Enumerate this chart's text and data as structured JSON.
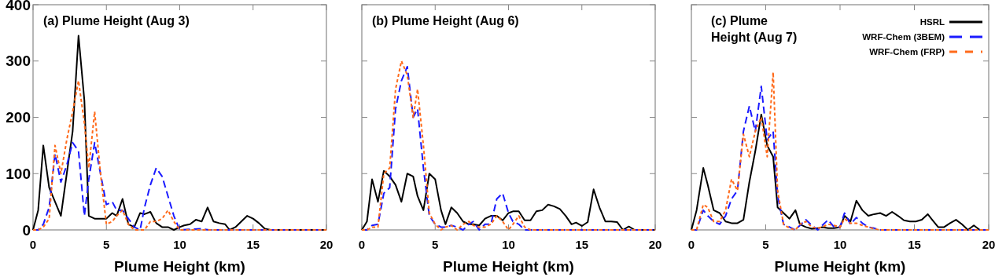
{
  "chart_data": [
    {
      "type": "line",
      "title": "(a) Plume Height (Aug 3)",
      "xlabel": "Plume Height (km)",
      "xlim": [
        0,
        20
      ],
      "xticks": [
        0,
        5,
        10,
        15,
        20
      ],
      "ylim": [
        0,
        400
      ],
      "yticks": [
        0,
        100,
        200,
        300,
        400
      ],
      "grid": false,
      "legend": false,
      "series": [
        {
          "color": "#000000",
          "line_style": "solid",
          "x": [
            0,
            0.35,
            0.7,
            1.1,
            1.5,
            1.9,
            2.3,
            2.7,
            3.1,
            3.5,
            3.8,
            4.2,
            4.6,
            5,
            5.4,
            5.7,
            6.1,
            6.5,
            6.9,
            7.3,
            7.6,
            8,
            8.4,
            8.8,
            9.2,
            9.6,
            10,
            10.3,
            10.7,
            11.1,
            11.5,
            11.9,
            12.3,
            12.7,
            13.1,
            13.4,
            13.8,
            14.2,
            14.6,
            15,
            15.4,
            15.8,
            16.2,
            20
          ],
          "values": [
            0,
            35,
            150,
            75,
            50,
            25,
            100,
            175,
            345,
            230,
            25,
            20,
            20,
            20,
            30,
            25,
            55,
            10,
            5,
            30,
            28,
            32,
            12,
            5,
            5,
            0,
            5,
            8,
            10,
            18,
            15,
            40,
            15,
            12,
            10,
            0,
            5,
            15,
            25,
            20,
            12,
            2,
            0,
            0
          ]
        },
        {
          "color": "#1a1aff",
          "line_style": "dashed",
          "x": [
            0,
            0.35,
            0.7,
            1.1,
            1.5,
            1.9,
            2.3,
            2.7,
            3.1,
            3.5,
            3.8,
            4.2,
            4.6,
            5,
            5.4,
            5.7,
            6.1,
            6.5,
            6.9,
            7.3,
            7.6,
            8,
            8.4,
            8.8,
            9.2,
            9.6,
            10,
            11.5,
            12,
            20
          ],
          "values": [
            0,
            0,
            10,
            40,
            135,
            85,
            115,
            155,
            140,
            25,
            90,
            155,
            100,
            45,
            50,
            35,
            35,
            20,
            5,
            0,
            40,
            80,
            110,
            95,
            60,
            25,
            0,
            2,
            0,
            0
          ]
        },
        {
          "color": "#ff6a1a",
          "line_style": "dotted",
          "x": [
            0,
            0.35,
            0.7,
            1.1,
            1.5,
            1.9,
            2.3,
            2.7,
            3.1,
            3.5,
            3.8,
            4.2,
            4.6,
            5,
            5.4,
            5.7,
            6.1,
            6.5,
            6.9,
            7.6,
            8,
            8.4,
            8.8,
            9.2,
            9.6,
            10,
            20
          ],
          "values": [
            0,
            0,
            5,
            20,
            150,
            100,
            160,
            210,
            265,
            190,
            110,
            210,
            100,
            10,
            15,
            25,
            35,
            10,
            0,
            0,
            15,
            15,
            20,
            35,
            15,
            0,
            0
          ]
        }
      ]
    },
    {
      "type": "line",
      "title": "(b) Plume Height (Aug 6)",
      "xlabel": "Plume Height (km)",
      "xlim": [
        0,
        20
      ],
      "xticks": [
        0,
        5,
        10,
        15,
        20
      ],
      "ylim": [
        0,
        400
      ],
      "yticks": [
        0,
        100,
        200,
        300,
        400
      ],
      "tick_labels": "x",
      "grid": false,
      "legend": false,
      "series": [
        {
          "color": "#000000",
          "line_style": "solid",
          "x": [
            0,
            0.35,
            0.7,
            1.1,
            1.5,
            1.9,
            2.3,
            2.7,
            3.1,
            3.5,
            3.8,
            4.2,
            4.6,
            5,
            5.4,
            5.7,
            6.1,
            6.5,
            6.9,
            7.3,
            7.6,
            8,
            8.4,
            8.8,
            9.2,
            9.6,
            10,
            10.3,
            10.7,
            11.1,
            11.5,
            11.9,
            12.3,
            12.7,
            13.1,
            13.5,
            13.9,
            14.3,
            14.6,
            15,
            15.4,
            15.8,
            16.2,
            16.6,
            17,
            17.4,
            17.8,
            18.2,
            18.6,
            20
          ],
          "values": [
            0,
            15,
            90,
            50,
            105,
            95,
            80,
            50,
            100,
            95,
            60,
            35,
            100,
            90,
            35,
            10,
            40,
            30,
            15,
            10,
            10,
            8,
            20,
            25,
            25,
            17,
            30,
            33,
            33,
            17,
            17,
            33,
            35,
            45,
            42,
            37,
            25,
            10,
            13,
            7,
            14,
            72,
            40,
            15,
            15,
            14,
            0,
            6,
            0,
            0
          ]
        },
        {
          "color": "#1a1aff",
          "line_style": "dashed",
          "x": [
            0,
            0.35,
            0.7,
            1.1,
            1.5,
            1.9,
            2.3,
            2.7,
            3.1,
            3.5,
            3.8,
            4.2,
            4.6,
            5,
            5.4,
            5.7,
            6.1,
            6.5,
            6.9,
            7.3,
            7.6,
            8,
            8.4,
            8.8,
            9.2,
            9.6,
            10,
            10.3,
            10.7,
            11.1,
            20
          ],
          "values": [
            0,
            0,
            8,
            10,
            65,
            75,
            215,
            265,
            290,
            200,
            215,
            110,
            25,
            10,
            5,
            5,
            8,
            5,
            0,
            10,
            15,
            0,
            10,
            10,
            55,
            65,
            30,
            15,
            10,
            0,
            0
          ]
        },
        {
          "color": "#ff6a1a",
          "line_style": "dotted",
          "x": [
            0,
            0.35,
            0.7,
            1.1,
            1.5,
            1.9,
            2.3,
            2.7,
            3.1,
            3.5,
            3.8,
            4.2,
            4.6,
            5,
            5.4,
            5.7,
            6.1,
            6.5,
            6.9,
            7.3,
            7.6,
            8,
            8.4,
            8.8,
            9.2,
            9.6,
            10,
            10.3,
            10.7,
            11.1,
            11.5,
            20
          ],
          "values": [
            0,
            0,
            5,
            5,
            100,
            110,
            250,
            300,
            275,
            200,
            250,
            150,
            30,
            10,
            0,
            5,
            8,
            0,
            10,
            15,
            8,
            5,
            5,
            10,
            25,
            15,
            0,
            10,
            25,
            5,
            0,
            0
          ]
        }
      ]
    },
    {
      "type": "line",
      "title": "(c) Plume Height (Aug 7)",
      "xlabel": "Plume Height (km)",
      "xlim": [
        0,
        20
      ],
      "xticks": [
        0,
        5,
        10,
        15,
        20
      ],
      "ylim": [
        0,
        400
      ],
      "yticks": [
        0,
        100,
        200,
        300,
        400
      ],
      "tick_labels": "x",
      "grid": false,
      "legend": "top right",
      "series": [
        {
          "name": "HSRL",
          "color": "#000000",
          "line_style": "solid",
          "x": [
            0,
            0.35,
            0.8,
            1.1,
            1.5,
            1.9,
            2.3,
            2.7,
            3.1,
            3.5,
            3.9,
            4.3,
            4.7,
            5.1,
            5.5,
            5.8,
            6.2,
            6.6,
            7,
            7.3,
            7.7,
            8.1,
            8.5,
            8.8,
            9.2,
            9.6,
            10,
            10.3,
            10.7,
            11.1,
            11.5,
            11.9,
            12.3,
            12.7,
            13.1,
            13.5,
            13.9,
            14.3,
            14.7,
            15.1,
            15.5,
            15.9,
            16.2,
            16.6,
            17,
            17.4,
            17.8,
            18.2,
            18.6,
            19,
            19.4
          ],
          "values": [
            0,
            35,
            110,
            80,
            35,
            30,
            15,
            12,
            12,
            18,
            85,
            140,
            205,
            150,
            130,
            40,
            30,
            20,
            35,
            10,
            5,
            2,
            3,
            5,
            3,
            3,
            5,
            25,
            15,
            52,
            35,
            25,
            28,
            30,
            25,
            32,
            25,
            17,
            15,
            15,
            18,
            28,
            18,
            5,
            5,
            12,
            18,
            10,
            0,
            8,
            0
          ]
        },
        {
          "name": "WRF-Chem (3BEM)",
          "color": "#1a1aff",
          "line_style": "dashed",
          "x": [
            0,
            0.35,
            0.8,
            1.1,
            1.5,
            1.9,
            2.3,
            2.7,
            3.1,
            3.5,
            3.9,
            4.3,
            4.7,
            5.1,
            5.5,
            5.8,
            6.2,
            6.6,
            7,
            7.3,
            7.7,
            8.1,
            8.5,
            8.8,
            9.2,
            9.6,
            10,
            10.3,
            10.7,
            11.1,
            11.5,
            11.9,
            12.3,
            12.7,
            20
          ],
          "values": [
            0,
            0,
            35,
            25,
            15,
            10,
            25,
            55,
            70,
            175,
            220,
            175,
            255,
            160,
            175,
            60,
            10,
            5,
            0,
            8,
            18,
            8,
            0,
            8,
            18,
            5,
            5,
            30,
            10,
            22,
            12,
            5,
            3,
            0,
            0
          ]
        },
        {
          "name": "WRF-Chem (FRP)",
          "color": "#ff6a1a",
          "line_style": "dotted",
          "x": [
            0,
            0.35,
            0.8,
            1.1,
            1.5,
            1.9,
            2.3,
            2.7,
            3.1,
            3.5,
            3.9,
            4.3,
            4.7,
            5.1,
            5.5,
            5.8,
            6.2,
            6.6,
            7,
            7.3,
            7.7,
            8.1,
            8.5,
            8.8,
            9.2,
            9.6,
            10,
            10.3,
            10.7,
            11.1,
            11.5,
            11.9,
            12.3,
            12.7,
            20
          ],
          "values": [
            0,
            0,
            45,
            40,
            15,
            15,
            35,
            90,
            70,
            170,
            130,
            175,
            200,
            130,
            280,
            70,
            10,
            3,
            0,
            10,
            15,
            5,
            3,
            5,
            10,
            8,
            5,
            20,
            12,
            12,
            8,
            5,
            2,
            0,
            0
          ]
        }
      ]
    }
  ]
}
